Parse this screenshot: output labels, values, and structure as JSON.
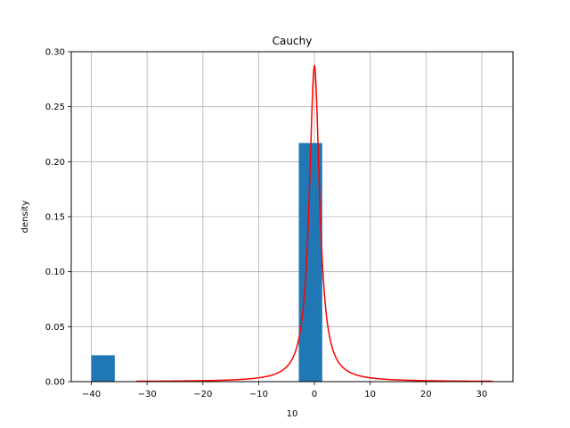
{
  "chart_data": {
    "type": "bar",
    "title": "Cauchy",
    "xlabel": "10",
    "ylabel": "density",
    "xlim": [
      -43.6,
      35.6
    ],
    "ylim": [
      0,
      0.3
    ],
    "grid": true,
    "xticks": [
      -40,
      -30,
      -20,
      -10,
      0,
      10,
      20,
      30
    ],
    "xtick_labels": [
      "−40",
      "−30",
      "−20",
      "−10",
      "0",
      "10",
      "20",
      "30"
    ],
    "yticks": [
      0.0,
      0.05,
      0.1,
      0.15,
      0.2,
      0.25,
      0.3
    ],
    "ytick_labels": [
      "0.00",
      "0.05",
      "0.10",
      "0.15",
      "0.20",
      "0.25",
      "0.30"
    ],
    "bars": [
      {
        "x0": -40.0,
        "x1": -35.8,
        "value": 0.024
      },
      {
        "x0": -2.8,
        "x1": 1.4,
        "value": 0.217
      }
    ],
    "bar_color": "#1f77b4",
    "series": [
      {
        "type": "line",
        "color": "#ff0000",
        "distribution": "cauchy",
        "x_range": [
          -32,
          32
        ],
        "peak": 0.288
      }
    ],
    "grid_color": "#b0b0b0"
  }
}
